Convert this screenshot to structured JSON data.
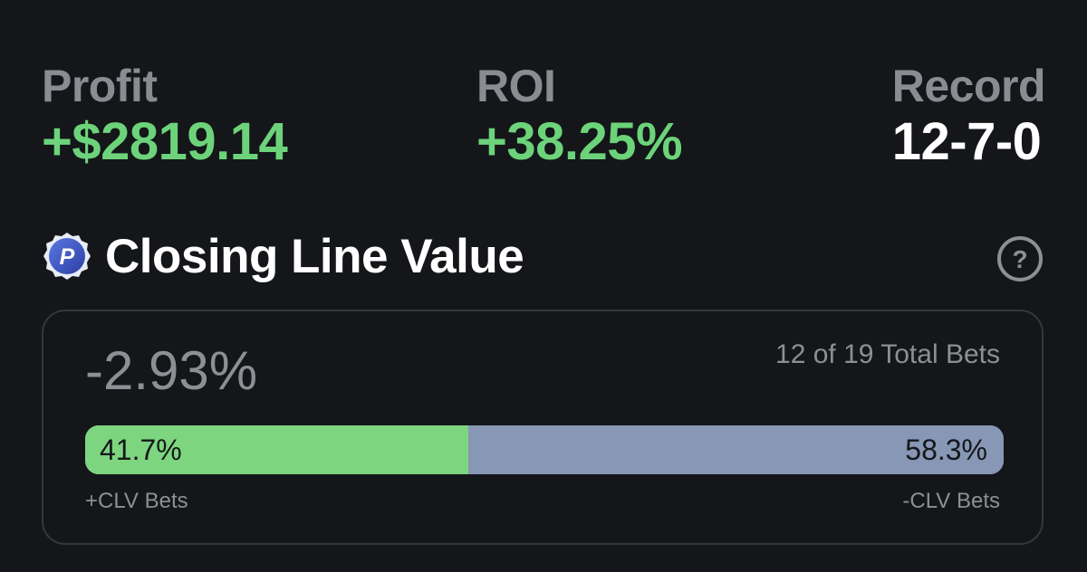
{
  "colors": {
    "background": "#141619",
    "positive": "#6cd37a",
    "neutral_label": "#8a8c92",
    "white": "#ffffff",
    "bar_positive": "#7dd67f",
    "bar_negative": "#8797b5",
    "card_border": "#34373d"
  },
  "stats": {
    "profit": {
      "label": "Profit",
      "value": "+$2819.14"
    },
    "roi": {
      "label": "ROI",
      "value": "+38.25%"
    },
    "record": {
      "label": "Record",
      "value": "12-7-0"
    }
  },
  "clv": {
    "badge_icon": "p-badge-icon",
    "badge_letter": "P",
    "title": "Closing Line Value",
    "help_icon": "question-circle-icon",
    "value": "-2.93%",
    "bets_count": "12 of 19 Total Bets",
    "positive_fraction": 0.417,
    "positive_percent_label": "41.7%",
    "negative_percent_label": "58.3%",
    "positive_caption": "+CLV Bets",
    "negative_caption": "-CLV Bets"
  }
}
